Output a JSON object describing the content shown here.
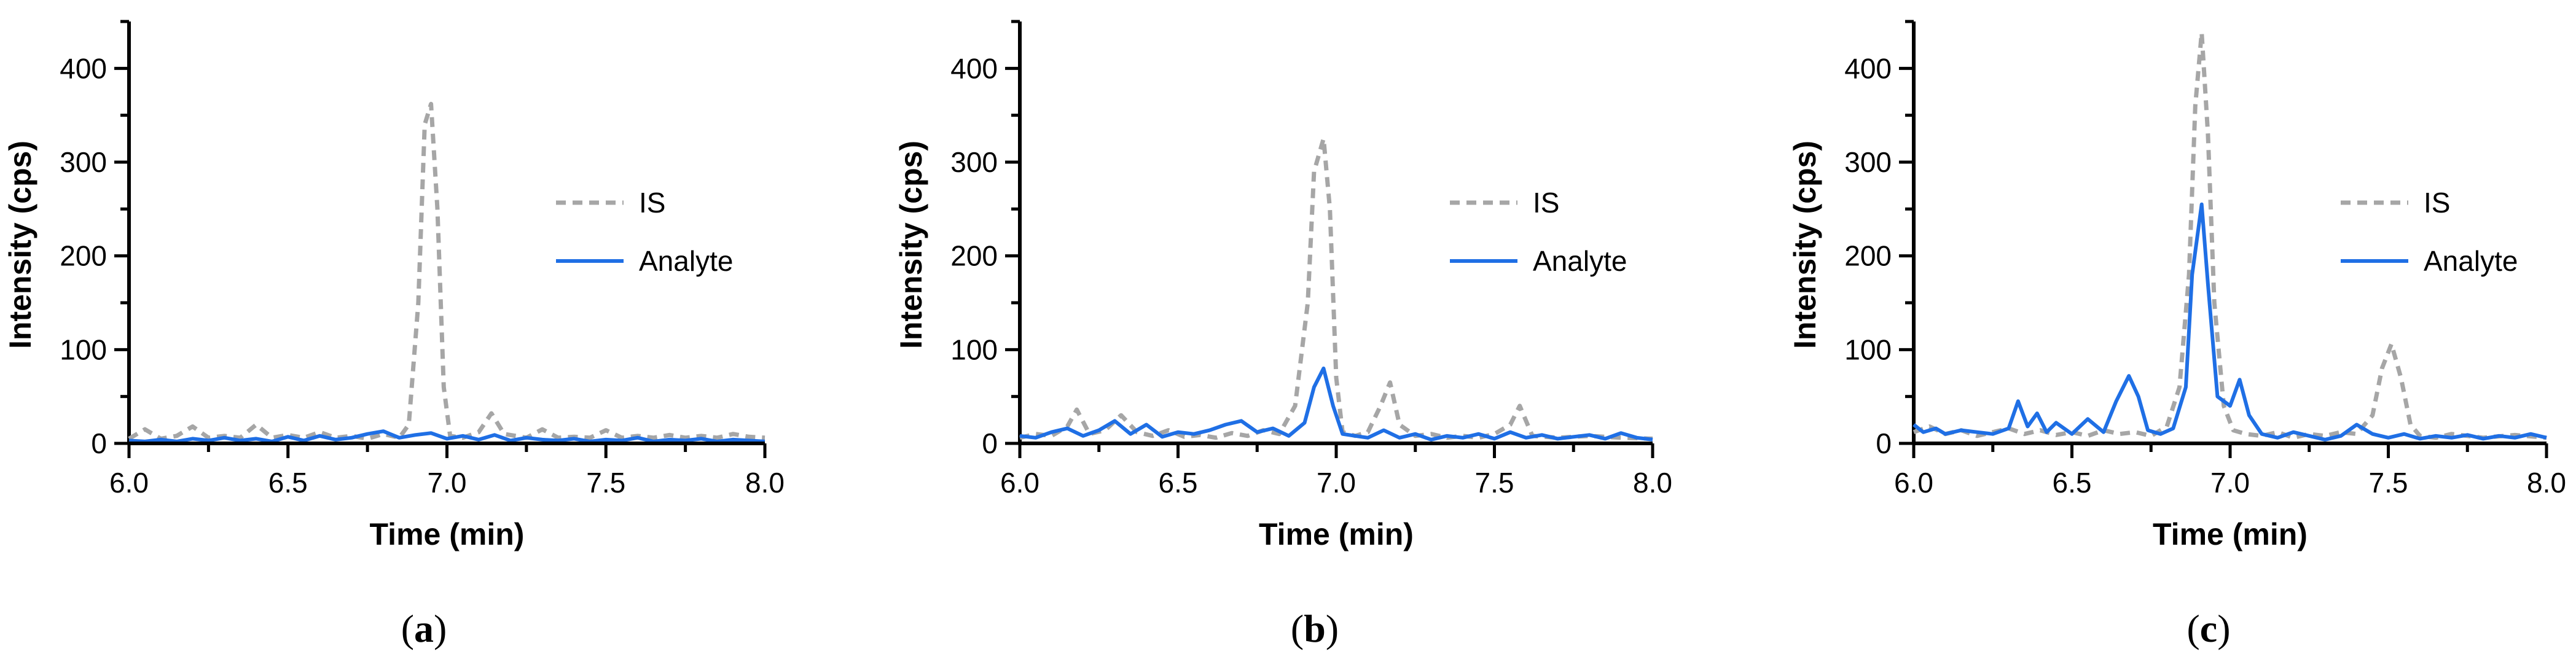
{
  "figure": {
    "colors": {
      "IS": "#a6a6a6",
      "Analyte": "#1f6fe5",
      "axis": "#000000"
    }
  },
  "chart_data": [
    {
      "type": "line",
      "panel": "a",
      "caption": {
        "open": "(",
        "letter": "a",
        "close": ")"
      },
      "xlabel": "Time (min)",
      "ylabel": "Intensity (cps)",
      "xlim": [
        6.0,
        8.0
      ],
      "ylim": [
        0,
        450
      ],
      "xticks": [
        "6.0",
        "6.5",
        "7.0",
        "7.5",
        "8.0"
      ],
      "yticks": [
        "0",
        "100",
        "200",
        "300",
        "400"
      ],
      "legend": {
        "position": "right",
        "entries": [
          "IS",
          "Analyte"
        ]
      },
      "series": [
        {
          "name": "IS",
          "style": "dashed",
          "x": [
            6.0,
            6.05,
            6.1,
            6.15,
            6.2,
            6.25,
            6.3,
            6.35,
            6.4,
            6.45,
            6.5,
            6.55,
            6.6,
            6.65,
            6.7,
            6.75,
            6.8,
            6.85,
            6.88,
            6.91,
            6.93,
            6.95,
            6.97,
            6.99,
            7.01,
            7.05,
            7.1,
            7.14,
            7.18,
            7.25,
            7.3,
            7.35,
            7.4,
            7.45,
            7.5,
            7.55,
            7.6,
            7.65,
            7.7,
            7.75,
            7.8,
            7.85,
            7.9,
            7.95,
            8.0
          ],
          "y": [
            5,
            15,
            5,
            8,
            18,
            6,
            8,
            6,
            20,
            6,
            9,
            6,
            12,
            6,
            8,
            5,
            10,
            6,
            20,
            150,
            340,
            362,
            250,
            60,
            8,
            6,
            12,
            32,
            10,
            6,
            15,
            6,
            7,
            6,
            14,
            6,
            8,
            6,
            9,
            6,
            8,
            6,
            10,
            7,
            6
          ]
        },
        {
          "name": "Analyte",
          "style": "solid",
          "x": [
            6.0,
            6.05,
            6.1,
            6.15,
            6.2,
            6.25,
            6.3,
            6.35,
            6.4,
            6.45,
            6.5,
            6.55,
            6.6,
            6.65,
            6.7,
            6.75,
            6.8,
            6.85,
            6.9,
            6.95,
            7.0,
            7.05,
            7.1,
            7.15,
            7.2,
            7.25,
            7.3,
            7.35,
            7.4,
            7.45,
            7.5,
            7.55,
            7.6,
            7.65,
            7.7,
            7.75,
            7.8,
            7.85,
            7.9,
            7.95,
            8.0
          ],
          "y": [
            3,
            2,
            4,
            2,
            5,
            3,
            6,
            3,
            5,
            2,
            7,
            3,
            8,
            4,
            6,
            10,
            13,
            6,
            9,
            11,
            5,
            8,
            4,
            9,
            3,
            6,
            4,
            3,
            5,
            2,
            4,
            3,
            6,
            2,
            4,
            3,
            5,
            2,
            4,
            3,
            2
          ]
        }
      ]
    },
    {
      "type": "line",
      "panel": "b",
      "caption": {
        "open": "(",
        "letter": "b",
        "close": ")"
      },
      "xlabel": "Time (min)",
      "ylabel": "Intensity (cps)",
      "xlim": [
        6.0,
        8.0
      ],
      "ylim": [
        0,
        450
      ],
      "xticks": [
        "6.0",
        "6.5",
        "7.0",
        "7.5",
        "8.0"
      ],
      "yticks": [
        "0",
        "100",
        "200",
        "300",
        "400"
      ],
      "legend": {
        "position": "right",
        "entries": [
          "IS",
          "Analyte"
        ]
      },
      "series": [
        {
          "name": "IS",
          "style": "dashed",
          "x": [
            6.0,
            6.05,
            6.1,
            6.15,
            6.18,
            6.22,
            6.27,
            6.32,
            6.37,
            6.42,
            6.47,
            6.52,
            6.57,
            6.62,
            6.67,
            6.72,
            6.77,
            6.82,
            6.87,
            6.91,
            6.93,
            6.96,
            6.98,
            7.0,
            7.02,
            7.06,
            7.1,
            7.14,
            7.17,
            7.2,
            7.25,
            7.3,
            7.35,
            7.4,
            7.45,
            7.5,
            7.55,
            7.58,
            7.62,
            7.7,
            7.8,
            7.9,
            8.0
          ],
          "y": [
            6,
            10,
            8,
            18,
            36,
            10,
            14,
            30,
            12,
            8,
            14,
            7,
            9,
            6,
            11,
            8,
            14,
            10,
            40,
            150,
            290,
            325,
            250,
            70,
            12,
            8,
            12,
            40,
            65,
            20,
            8,
            10,
            6,
            8,
            6,
            10,
            20,
            40,
            8,
            6,
            8,
            6,
            5
          ]
        },
        {
          "name": "Analyte",
          "style": "solid",
          "x": [
            6.0,
            6.05,
            6.1,
            6.15,
            6.2,
            6.25,
            6.3,
            6.35,
            6.4,
            6.45,
            6.5,
            6.55,
            6.6,
            6.65,
            6.7,
            6.75,
            6.8,
            6.85,
            6.9,
            6.93,
            6.96,
            6.99,
            7.02,
            7.06,
            7.1,
            7.15,
            7.2,
            7.25,
            7.3,
            7.35,
            7.4,
            7.45,
            7.5,
            7.55,
            7.6,
            7.65,
            7.7,
            7.75,
            7.8,
            7.85,
            7.9,
            7.95,
            8.0
          ],
          "y": [
            8,
            6,
            12,
            16,
            8,
            14,
            24,
            10,
            20,
            7,
            12,
            10,
            14,
            20,
            24,
            12,
            16,
            8,
            22,
            60,
            80,
            40,
            10,
            8,
            6,
            14,
            6,
            10,
            4,
            8,
            6,
            10,
            5,
            12,
            6,
            9,
            5,
            7,
            9,
            5,
            11,
            6,
            4
          ]
        }
      ]
    },
    {
      "type": "line",
      "panel": "c",
      "caption": {
        "open": "(",
        "letter": "c",
        "close": ")"
      },
      "xlabel": "Time (min)",
      "ylabel": "Intensity (cps)",
      "xlim": [
        6.0,
        8.0
      ],
      "ylim": [
        0,
        450
      ],
      "xticks": [
        "6.0",
        "6.5",
        "7.0",
        "7.5",
        "8.0"
      ],
      "yticks": [
        "0",
        "100",
        "200",
        "300",
        "400"
      ],
      "legend": {
        "position": "right",
        "entries": [
          "IS",
          "Analyte"
        ]
      },
      "series": [
        {
          "name": "IS",
          "style": "dashed",
          "x": [
            6.0,
            6.05,
            6.1,
            6.15,
            6.2,
            6.25,
            6.3,
            6.35,
            6.4,
            6.45,
            6.5,
            6.55,
            6.6,
            6.65,
            6.7,
            6.75,
            6.8,
            6.84,
            6.87,
            6.89,
            6.91,
            6.93,
            6.95,
            6.98,
            7.01,
            7.05,
            7.1,
            7.15,
            7.2,
            7.25,
            7.3,
            7.35,
            7.4,
            7.45,
            7.48,
            7.51,
            7.54,
            7.57,
            7.6,
            7.65,
            7.7,
            7.8,
            7.9,
            8.0
          ],
          "y": [
            12,
            18,
            10,
            14,
            8,
            12,
            16,
            10,
            14,
            9,
            12,
            8,
            14,
            10,
            12,
            8,
            18,
            60,
            180,
            360,
            438,
            330,
            150,
            40,
            14,
            10,
            8,
            12,
            6,
            10,
            8,
            12,
            10,
            30,
            80,
            106,
            70,
            20,
            8,
            6,
            10,
            6,
            9,
            6
          ]
        },
        {
          "name": "Analyte",
          "style": "solid",
          "x": [
            6.0,
            6.03,
            6.07,
            6.1,
            6.15,
            6.2,
            6.25,
            6.3,
            6.33,
            6.36,
            6.39,
            6.42,
            6.45,
            6.5,
            6.55,
            6.6,
            6.64,
            6.68,
            6.71,
            6.74,
            6.78,
            6.82,
            6.86,
            6.88,
            6.91,
            6.93,
            6.96,
            7.0,
            7.03,
            7.06,
            7.1,
            7.15,
            7.2,
            7.25,
            7.3,
            7.35,
            7.4,
            7.45,
            7.5,
            7.55,
            7.6,
            7.65,
            7.7,
            7.75,
            7.8,
            7.85,
            7.9,
            7.95,
            8.0
          ],
          "y": [
            20,
            12,
            16,
            10,
            14,
            12,
            10,
            16,
            45,
            18,
            32,
            12,
            22,
            10,
            26,
            12,
            45,
            72,
            50,
            14,
            10,
            16,
            60,
            180,
            255,
            170,
            50,
            40,
            68,
            30,
            10,
            6,
            12,
            8,
            4,
            8,
            20,
            10,
            6,
            10,
            5,
            8,
            6,
            9,
            5,
            8,
            6,
            10,
            6
          ]
        }
      ]
    }
  ]
}
